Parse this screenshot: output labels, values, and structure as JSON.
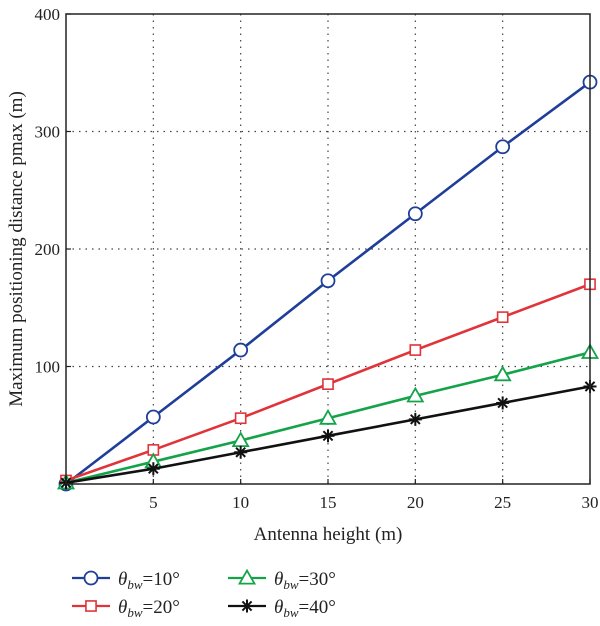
{
  "chart_data": {
    "type": "line",
    "title": "",
    "xlabel": "Antenna height (m)",
    "ylabel": "Maximum positioning distance pmax (m)",
    "xlim": [
      0,
      30
    ],
    "ylim": [
      0,
      400
    ],
    "xticks": [
      5,
      10,
      15,
      20,
      25,
      30
    ],
    "yticks": [
      100,
      200,
      300,
      400
    ],
    "grid": true,
    "grid_style": "dotted",
    "legend_position": "bottom",
    "x": [
      0,
      5,
      10,
      15,
      20,
      25,
      30
    ],
    "series": [
      {
        "name": "θbw=10°",
        "symbol": "θ",
        "subscript": "bw",
        "value": "=10°",
        "marker": "circle",
        "color": "#1f3e99",
        "values": [
          0,
          57,
          114,
          173,
          230,
          287,
          342
        ]
      },
      {
        "name": "θbw=20°",
        "symbol": "θ",
        "subscript": "bw",
        "value": "=20°",
        "marker": "square",
        "color": "#e0343a",
        "values": [
          3,
          29,
          56,
          85,
          114,
          142,
          170
        ]
      },
      {
        "name": "θbw=30°",
        "symbol": "θ",
        "subscript": "bw",
        "value": "=30°",
        "marker": "triangle",
        "color": "#15a34a",
        "values": [
          1,
          19,
          37,
          56,
          75,
          93,
          112
        ]
      },
      {
        "name": "θbw=40°",
        "symbol": "θ",
        "subscript": "bw",
        "value": "=40°",
        "marker": "star",
        "color": "#111111",
        "values": [
          1,
          13,
          27,
          41,
          55,
          69,
          83
        ]
      }
    ]
  }
}
